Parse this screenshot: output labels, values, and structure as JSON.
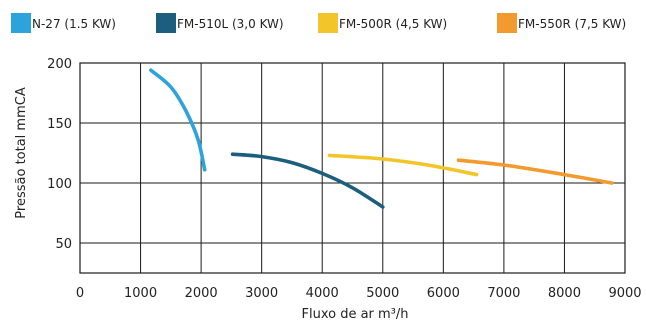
{
  "chart_data": {
    "type": "line",
    "title": "",
    "xlabel": "Fluxo de ar m³/h",
    "ylabel": "Pressão total mmCA",
    "xlim": [
      0,
      9000
    ],
    "ylim": [
      25,
      200
    ],
    "x_ticks": [
      0,
      1000,
      2000,
      3000,
      4000,
      5000,
      6000,
      7000,
      8000,
      9000
    ],
    "x_tick_labels": [
      "0",
      "1000",
      "2000",
      "3000",
      "4000",
      "5000",
      "6000",
      "7000",
      "8000",
      "9000"
    ],
    "y_ticks": [
      50,
      100,
      150,
      200
    ],
    "y_tick_labels": [
      "50",
      "100",
      "150",
      "200"
    ],
    "grid": true,
    "legend_position": "top",
    "series": [
      {
        "name": "N-27 (1.5 KW)",
        "color": "#2da3dc",
        "points": [
          [
            1170,
            194
          ],
          [
            1500,
            180
          ],
          [
            1750,
            160
          ],
          [
            1950,
            136
          ],
          [
            2060,
            111
          ]
        ]
      },
      {
        "name": "FM-510L (3,0 KW)",
        "color": "#1d5e7e",
        "points": [
          [
            2520,
            124
          ],
          [
            3000,
            122
          ],
          [
            3500,
            117
          ],
          [
            4000,
            108
          ],
          [
            4500,
            96
          ],
          [
            5000,
            80
          ]
        ]
      },
      {
        "name": "FM-500R (4,5 KW)",
        "color": "#f2c62b",
        "points": [
          [
            4120,
            123
          ],
          [
            5000,
            120
          ],
          [
            5800,
            114.5
          ],
          [
            6550,
            107
          ]
        ]
      },
      {
        "name": "FM-550R (7,5 KW)",
        "color": "#f29a2e",
        "points": [
          [
            6250,
            119
          ],
          [
            7000,
            115
          ],
          [
            8000,
            107
          ],
          [
            8780,
            100
          ]
        ]
      }
    ]
  }
}
